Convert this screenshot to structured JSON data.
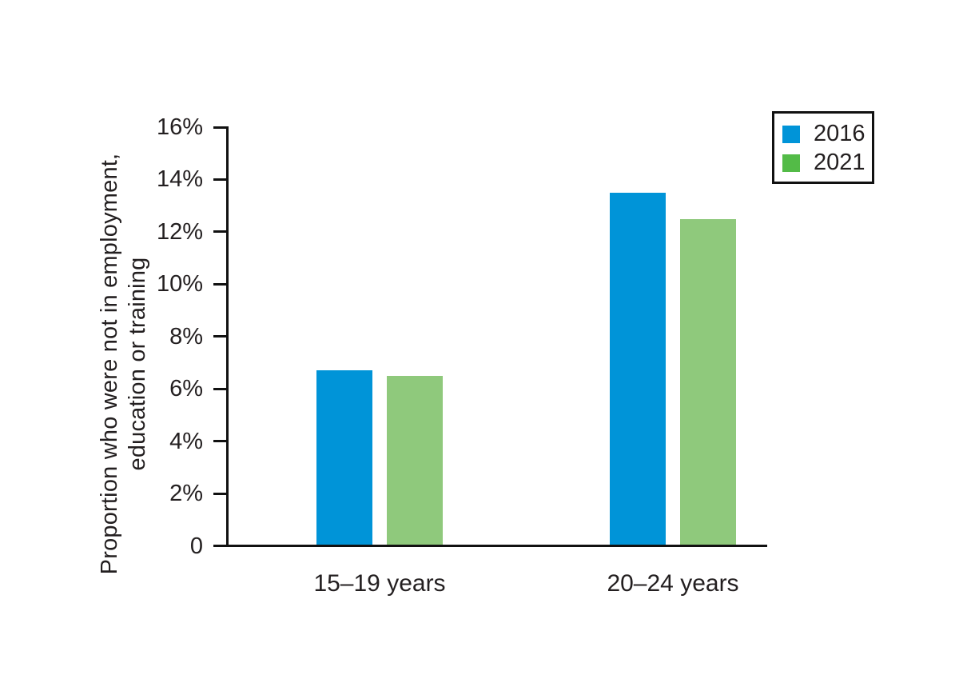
{
  "chart_data": {
    "type": "bar",
    "title": "",
    "categories": [
      "15–19 years",
      "20–24 years"
    ],
    "series": [
      {
        "name": "2016",
        "values": [
          6.7,
          13.5
        ],
        "legend_color": "#0094D8",
        "bar_color": "#0094D8"
      },
      {
        "name": "2021",
        "values": [
          6.5,
          12.5
        ],
        "legend_color": "#53BB47",
        "bar_color": "#8FC97C"
      }
    ],
    "ylabel": "Proportion who were not in employment, education or training",
    "ylabel_lines": [
      "Proportion who were not in employment,",
      "education or training"
    ],
    "xlabel": "",
    "unit": "%",
    "ylim": [
      0,
      16
    ],
    "ytick_interval": 2,
    "yticks": [
      {
        "value": 0,
        "label": "0"
      },
      {
        "value": 2,
        "label": "2%"
      },
      {
        "value": 4,
        "label": "4%"
      },
      {
        "value": 6,
        "label": "6%"
      },
      {
        "value": 8,
        "label": "8%"
      },
      {
        "value": 10,
        "label": "10%"
      },
      {
        "value": 12,
        "label": "12%"
      },
      {
        "value": 14,
        "label": "14%"
      },
      {
        "value": 16,
        "label": "16%"
      }
    ],
    "grid": false,
    "legend_position": "top-right",
    "colors": {
      "axis": "#111111",
      "text": "#231F20",
      "background": "#FFFFFF"
    }
  }
}
